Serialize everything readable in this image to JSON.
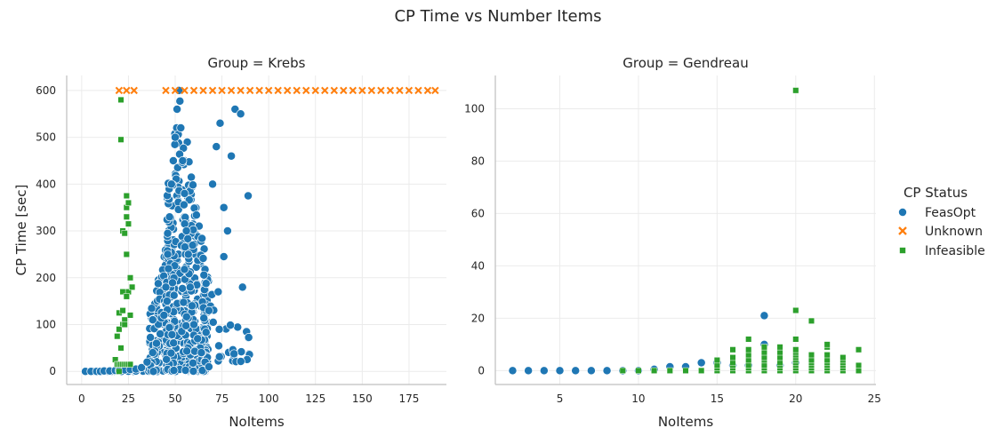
{
  "figure": {
    "title": "CP Time vs Number Items"
  },
  "legend": {
    "title": "CP Status",
    "placement": "right",
    "items": [
      {
        "label": "FeasOpt",
        "marker": "circle",
        "color": "#1f77b4"
      },
      {
        "label": "Unknown",
        "marker": "x",
        "color": "#ff7f0e"
      },
      {
        "label": "Infeasible",
        "marker": "square",
        "color": "#2ca02c"
      }
    ]
  },
  "chart_data": [
    {
      "type": "scatter",
      "title": "Group = Krebs",
      "xlabel": "NoItems",
      "ylabel": "CP Time [sec]",
      "xlim": [
        -8,
        195
      ],
      "ylim": [
        -28,
        632
      ],
      "xticks": [
        0,
        25,
        50,
        75,
        100,
        125,
        150,
        175
      ],
      "yticks": [
        0,
        100,
        200,
        300,
        400,
        500,
        600
      ],
      "grid": true,
      "summary_clusters": [
        {
          "series": "FeasOpt",
          "x_range": [
            2,
            36
          ],
          "y_range": [
            0,
            5
          ],
          "approx_count": 160
        },
        {
          "series": "FeasOpt",
          "x_range": [
            36,
            50
          ],
          "y_range": [
            0,
            400
          ],
          "approx_count": 350
        },
        {
          "series": "FeasOpt",
          "x_range": [
            45,
            68
          ],
          "y_range": [
            0,
            600
          ],
          "approx_count": 900
        },
        {
          "series": "FeasOpt",
          "x_range": [
            62,
            90
          ],
          "y_range": [
            20,
            580
          ],
          "approx_count": 80
        }
      ],
      "series": [
        {
          "name": "FeasOpt",
          "marker": "circle",
          "color": "#1f77b4",
          "points": [
            [
              2,
              0
            ],
            [
              5,
              0
            ],
            [
              8,
              0
            ],
            [
              10,
              0
            ],
            [
              12,
              1
            ],
            [
              15,
              1
            ],
            [
              18,
              2
            ],
            [
              20,
              2
            ],
            [
              23,
              3
            ],
            [
              26,
              4
            ],
            [
              29,
              5
            ],
            [
              32,
              8
            ],
            [
              35,
              20
            ],
            [
              38,
              40
            ],
            [
              40,
              60
            ],
            [
              42,
              80
            ],
            [
              44,
              120
            ],
            [
              45,
              180
            ],
            [
              46,
              250
            ],
            [
              47,
              330
            ],
            [
              48,
              400
            ],
            [
              49,
              450
            ],
            [
              50,
              500
            ],
            [
              51,
              560
            ],
            [
              52,
              600
            ],
            [
              53,
              520
            ],
            [
              54,
              450
            ],
            [
              55,
              380
            ],
            [
              56,
              300
            ],
            [
              57,
              250
            ],
            [
              58,
              180
            ],
            [
              59,
              140
            ],
            [
              60,
              100
            ],
            [
              62,
              70
            ],
            [
              64,
              40
            ],
            [
              66,
              20
            ],
            [
              68,
              10
            ],
            [
              70,
              400
            ],
            [
              72,
              480
            ],
            [
              74,
              530
            ],
            [
              76,
              350
            ],
            [
              78,
              300
            ],
            [
              80,
              460
            ],
            [
              82,
              560
            ],
            [
              85,
              550
            ],
            [
              86,
              180
            ],
            [
              89,
              375
            ],
            [
              76,
              245
            ],
            [
              68,
              130
            ],
            [
              73,
              170
            ]
          ]
        },
        {
          "name": "Unknown",
          "marker": "x",
          "color": "#ff7f0e",
          "points": [
            [
              20,
              600
            ],
            [
              24,
              600
            ],
            [
              28,
              600
            ],
            [
              45,
              600
            ],
            [
              50,
              600
            ],
            [
              55,
              600
            ],
            [
              60,
              600
            ],
            [
              65,
              600
            ],
            [
              70,
              600
            ],
            [
              75,
              600
            ],
            [
              80,
              600
            ],
            [
              85,
              600
            ],
            [
              90,
              600
            ],
            [
              95,
              600
            ],
            [
              100,
              600
            ],
            [
              105,
              600
            ],
            [
              110,
              600
            ],
            [
              115,
              600
            ],
            [
              120,
              600
            ],
            [
              125,
              600
            ],
            [
              130,
              600
            ],
            [
              135,
              600
            ],
            [
              140,
              600
            ],
            [
              145,
              600
            ],
            [
              150,
              600
            ],
            [
              155,
              600
            ],
            [
              160,
              600
            ],
            [
              165,
              600
            ],
            [
              170,
              600
            ],
            [
              175,
              600
            ],
            [
              180,
              600
            ],
            [
              185,
              600
            ],
            [
              189,
              600
            ]
          ]
        },
        {
          "name": "Infeasible",
          "marker": "square",
          "color": "#2ca02c",
          "points": [
            [
              20,
              0
            ],
            [
              21,
              580
            ],
            [
              21,
              495
            ],
            [
              22,
              170
            ],
            [
              22,
              300
            ],
            [
              23,
              295
            ],
            [
              24,
              375
            ],
            [
              24,
              350
            ],
            [
              24,
              330
            ],
            [
              24,
              250
            ],
            [
              25,
              360
            ],
            [
              25,
              315
            ],
            [
              26,
              200
            ],
            [
              25,
              170
            ],
            [
              24,
              160
            ],
            [
              26,
              120
            ],
            [
              23,
              110
            ],
            [
              22,
              100
            ],
            [
              20,
              90
            ],
            [
              19,
              75
            ],
            [
              21,
              50
            ],
            [
              18,
              25
            ],
            [
              19,
              15
            ],
            [
              20,
              15
            ],
            [
              21,
              15
            ],
            [
              22,
              15
            ],
            [
              23,
              15
            ],
            [
              24,
              15
            ],
            [
              25,
              15
            ],
            [
              26,
              15
            ],
            [
              27,
              180
            ],
            [
              20,
              125
            ],
            [
              22,
              130
            ],
            [
              23,
              100
            ]
          ]
        }
      ]
    },
    {
      "type": "scatter",
      "title": "Group = Gendreau",
      "xlabel": "NoItems",
      "ylabel": "",
      "xlim": [
        0.9,
        25.1
      ],
      "ylim": [
        -5.3,
        112.7
      ],
      "xticks": [
        5,
        10,
        15,
        20,
        25
      ],
      "yticks": [
        0,
        20,
        40,
        60,
        80,
        100
      ],
      "grid": true,
      "series": [
        {
          "name": "FeasOpt",
          "marker": "circle",
          "color": "#1f77b4",
          "points": [
            [
              2,
              0
            ],
            [
              3,
              0
            ],
            [
              4,
              0
            ],
            [
              5,
              0
            ],
            [
              6,
              0
            ],
            [
              7,
              0
            ],
            [
              8,
              0
            ],
            [
              9,
              0
            ],
            [
              10,
              0
            ],
            [
              11,
              0.5
            ],
            [
              12,
              1.5
            ],
            [
              13,
              1.5
            ],
            [
              14,
              3
            ],
            [
              15,
              3
            ],
            [
              16,
              2
            ],
            [
              17,
              2
            ],
            [
              18,
              21
            ],
            [
              18,
              10
            ],
            [
              19,
              2
            ],
            [
              20,
              3
            ]
          ]
        },
        {
          "name": "Infeasible",
          "marker": "square",
          "color": "#2ca02c",
          "points": [
            [
              9,
              0
            ],
            [
              10,
              0
            ],
            [
              11,
              0
            ],
            [
              12,
              0
            ],
            [
              13,
              0
            ],
            [
              14,
              0
            ],
            [
              15,
              0
            ],
            [
              15,
              1
            ],
            [
              15,
              2
            ],
            [
              15,
              4
            ],
            [
              16,
              0
            ],
            [
              16,
              1
            ],
            [
              16,
              2
            ],
            [
              16,
              3
            ],
            [
              16,
              5
            ],
            [
              16,
              8
            ],
            [
              17,
              0
            ],
            [
              17,
              1
            ],
            [
              17,
              2
            ],
            [
              17,
              4
            ],
            [
              17,
              6
            ],
            [
              17,
              8
            ],
            [
              17,
              12
            ],
            [
              18,
              0
            ],
            [
              18,
              1
            ],
            [
              18,
              2
            ],
            [
              18,
              4
            ],
            [
              18,
              5
            ],
            [
              18,
              7
            ],
            [
              18,
              9
            ],
            [
              19,
              0
            ],
            [
              19,
              1
            ],
            [
              19,
              2
            ],
            [
              19,
              3
            ],
            [
              19,
              5
            ],
            [
              19,
              7
            ],
            [
              19,
              9
            ],
            [
              20,
              0
            ],
            [
              20,
              1
            ],
            [
              20,
              2
            ],
            [
              20,
              3
            ],
            [
              20,
              4
            ],
            [
              20,
              5
            ],
            [
              20,
              6
            ],
            [
              20,
              7
            ],
            [
              20,
              8
            ],
            [
              20,
              12
            ],
            [
              20,
              23
            ],
            [
              20,
              107
            ],
            [
              21,
              0
            ],
            [
              21,
              1
            ],
            [
              21,
              2
            ],
            [
              21,
              3
            ],
            [
              21,
              4
            ],
            [
              21,
              6
            ],
            [
              21,
              19
            ],
            [
              22,
              0
            ],
            [
              22,
              1
            ],
            [
              22,
              2
            ],
            [
              22,
              3
            ],
            [
              22,
              4
            ],
            [
              22,
              6
            ],
            [
              22,
              9
            ],
            [
              22,
              10
            ],
            [
              23,
              0
            ],
            [
              23,
              1
            ],
            [
              23,
              2
            ],
            [
              23,
              3
            ],
            [
              23,
              4
            ],
            [
              23,
              5
            ],
            [
              24,
              0
            ],
            [
              24,
              2
            ],
            [
              24,
              8
            ]
          ]
        }
      ]
    }
  ]
}
